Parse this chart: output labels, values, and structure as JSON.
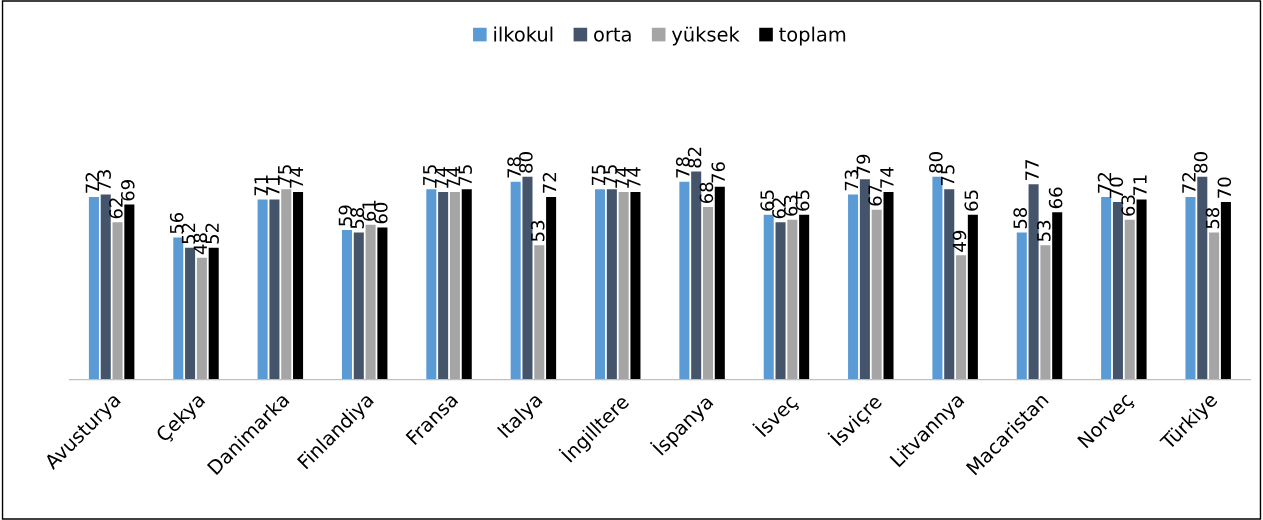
{
  "chart_data": {
    "type": "bar",
    "categories": [
      "Avusturya",
      "Çekya",
      "Danimarka",
      "Finlandiya",
      "Fransa",
      "Italya",
      "İngilltere",
      "İspanya",
      "İsveç",
      "İsviçre",
      "Litvannya",
      "Macaristan",
      "Norveç",
      "Türkiye"
    ],
    "series": [
      {
        "name": "ilkokul",
        "color": "#5b9bd5",
        "values": [
          72,
          56,
          71,
          59,
          75,
          78,
          75,
          78,
          65,
          73,
          80,
          58,
          72,
          72
        ]
      },
      {
        "name": "orta",
        "color": "#44546a",
        "values": [
          73,
          52,
          71,
          58,
          74,
          80,
          75,
          82,
          62,
          79,
          75,
          77,
          70,
          80
        ]
      },
      {
        "name": "yüksek",
        "color": "#a5a5a5",
        "values": [
          62,
          48,
          75,
          61,
          74,
          53,
          74,
          68,
          63,
          67,
          49,
          53,
          63,
          58
        ]
      },
      {
        "name": "toplam",
        "color": "#000000",
        "values": [
          69,
          52,
          74,
          60,
          75,
          72,
          74,
          76,
          65,
          74,
          65,
          66,
          71,
          70
        ]
      }
    ],
    "data_labels": true,
    "legend": "top",
    "tick_labels": "x"
  }
}
